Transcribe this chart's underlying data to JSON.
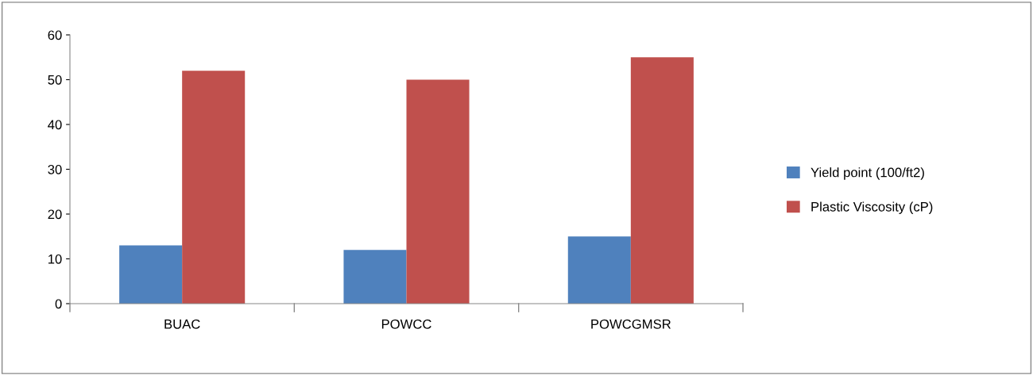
{
  "chart_data": {
    "type": "bar",
    "categories": [
      "BUAC",
      "POWCC",
      "POWCGMSR"
    ],
    "series": [
      {
        "name": "Yield point (100/ft2)",
        "color": "#4f81bd",
        "values": [
          13,
          12,
          15
        ]
      },
      {
        "name": "Plastic Viscosity (cP)",
        "color": "#c0504d",
        "values": [
          52,
          50,
          55
        ]
      }
    ],
    "ylim": [
      0,
      60
    ],
    "yticks": [
      0,
      10,
      20,
      30,
      40,
      50,
      60
    ],
    "grid": false,
    "legend": "right"
  }
}
